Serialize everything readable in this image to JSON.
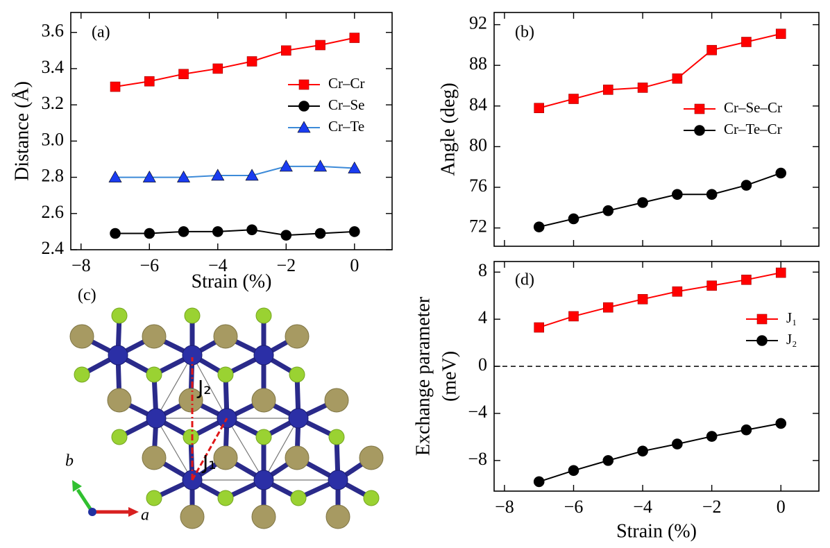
{
  "chart_data": [
    {
      "type": "line",
      "title": "(a)",
      "xlabel": "Strain (%)",
      "ylabel": "Distance (Å)",
      "x": [
        -7,
        -6,
        -5,
        -4,
        -3,
        -2,
        -1,
        0
      ],
      "xlim": [
        -8.3,
        1.1
      ],
      "xticks": [
        {
          "value": -8,
          "label": "−8"
        },
        {
          "value": -6,
          "label": "−6"
        },
        {
          "value": -4,
          "label": "−4"
        },
        {
          "value": -2,
          "label": "−2"
        },
        0
      ],
      "ylim": [
        2.4,
        3.71
      ],
      "yticks": [
        2.4,
        2.6,
        2.8,
        {
          "value": 3,
          "label": "3.0"
        },
        3.2,
        3.4,
        3.6
      ],
      "legend": "right",
      "series": [
        {
          "name": "Cr–Cr",
          "color": "#ff0000",
          "marker": "square",
          "values": [
            3.3,
            3.33,
            3.37,
            3.4,
            3.44,
            3.5,
            3.53,
            3.57
          ]
        },
        {
          "name": "Cr–Se",
          "color": "#000000",
          "marker": "circle",
          "values": [
            2.49,
            2.49,
            2.5,
            2.5,
            2.51,
            2.48,
            2.49,
            2.5
          ]
        },
        {
          "name": "Cr–Te",
          "color": "#3c8ad8",
          "marker_color": "#1a3cf0",
          "marker": "triangle",
          "values": [
            2.8,
            2.8,
            2.8,
            2.81,
            2.81,
            2.86,
            2.86,
            2.85
          ]
        }
      ]
    },
    {
      "type": "line",
      "title": "(b)",
      "ylabel": "Angle (deg)",
      "x": [
        -7,
        -6,
        -5,
        -4,
        -3,
        -2,
        -1,
        0
      ],
      "xlim": [
        -8.3,
        1.1
      ],
      "xticks": [
        -8,
        -6,
        -4,
        -2,
        0
      ],
      "ylim": [
        70.2,
        93.2
      ],
      "yticks": [
        72,
        76,
        80,
        84,
        88,
        92
      ],
      "legend": "right",
      "series": [
        {
          "name": "Cr–Se–Cr",
          "color": "#ff0000",
          "marker": "square",
          "values": [
            83.8,
            84.7,
            85.6,
            85.8,
            86.7,
            89.5,
            90.3,
            91.1
          ]
        },
        {
          "name": "Cr–Te–Cr",
          "color": "#000000",
          "marker": "circle",
          "values": [
            72.1,
            72.9,
            73.7,
            74.5,
            75.3,
            75.3,
            76.2,
            77.4
          ]
        }
      ]
    },
    {
      "type": "line",
      "title": "(d)",
      "xlabel": "Strain (%)",
      "ylabel": [
        "Exchange parameter",
        "(meV)"
      ],
      "x": [
        -7,
        -6,
        -5,
        -4,
        -3,
        -2,
        -1,
        0
      ],
      "xlim": [
        -8.3,
        1.1
      ],
      "xticks": [
        {
          "value": -8,
          "label": "−8"
        },
        {
          "value": -6,
          "label": "−6"
        },
        {
          "value": -4,
          "label": "−4"
        },
        {
          "value": -2,
          "label": "−2"
        },
        0
      ],
      "ylim": [
        -10.6,
        8.9
      ],
      "yticks": [
        {
          "value": -8,
          "label": "−8"
        },
        {
          "value": -4,
          "label": "−4"
        },
        0,
        4,
        8
      ],
      "hline": 0,
      "legend": "right",
      "series": [
        {
          "name": "J₁",
          "color": "#ff0000",
          "marker": "square",
          "values": [
            3.3,
            4.25,
            5.0,
            5.7,
            6.35,
            6.85,
            7.35,
            7.95
          ]
        },
        {
          "name": "J₂",
          "color": "#000000",
          "marker": "circle",
          "values": [
            -9.8,
            -8.85,
            -8.0,
            -7.2,
            -6.6,
            -5.95,
            -5.4,
            -4.85
          ]
        }
      ]
    }
  ],
  "structure": {
    "label": "(c)",
    "bonds": [
      "J₂",
      "J₁"
    ],
    "axes": [
      "a",
      "b"
    ]
  }
}
